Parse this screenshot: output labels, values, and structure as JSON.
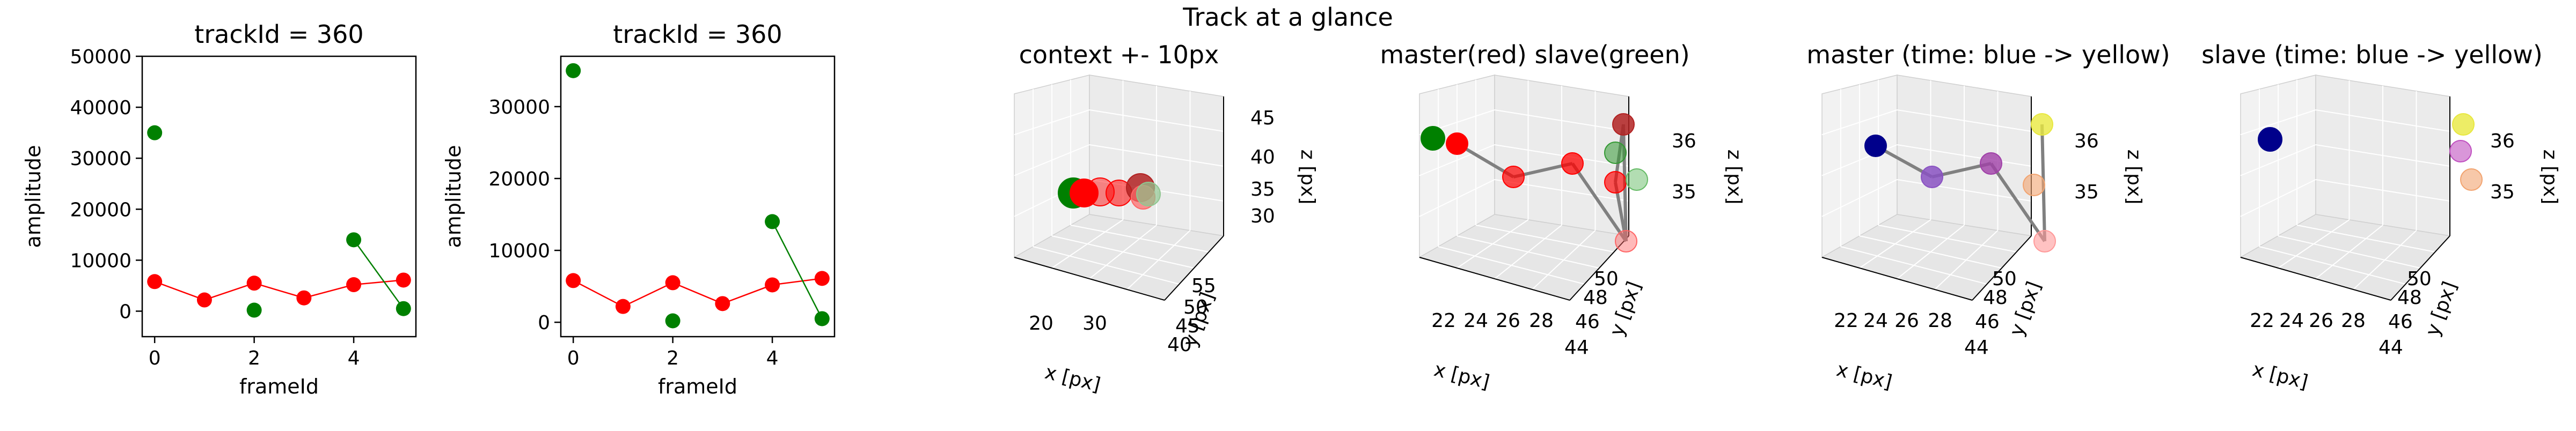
{
  "figure": {
    "suptitle": "Track at a glance"
  },
  "colors": {
    "master": "#ff0000",
    "slave": "#008000",
    "connector": "#808080",
    "time_start": "#00008b",
    "time_end": "#ffff66"
  },
  "chart_data": [
    {
      "type": "line",
      "title": "trackId = 360",
      "xlabel": "frameId",
      "ylabel": "amplitude",
      "xlim": [
        -0.25,
        5.25
      ],
      "ylim": [
        -5000,
        50000
      ],
      "xticks": [
        "0",
        "2",
        "4"
      ],
      "yticks": [
        "0",
        "10000",
        "20000",
        "30000",
        "40000",
        "50000"
      ],
      "series": [
        {
          "color": "#ff0000",
          "x": [
            0,
            1,
            2,
            3,
            4,
            5
          ],
          "y": [
            5800,
            2200,
            5500,
            2600,
            5200,
            6100
          ]
        },
        {
          "color": "#008000",
          "style": "points",
          "x": [
            0,
            2
          ],
          "y": [
            35000,
            200
          ]
        },
        {
          "color": "#008000",
          "x": [
            4,
            5
          ],
          "y": [
            14000,
            500
          ]
        }
      ]
    },
    {
      "type": "line",
      "title": "trackId = 360",
      "xlabel": "frameId",
      "ylabel": "amplitude",
      "xlim": [
        -0.25,
        5.25
      ],
      "ylim": [
        -2000,
        37000
      ],
      "xticks": [
        "0",
        "2",
        "4"
      ],
      "yticks": [
        "0",
        "10000",
        "20000",
        "30000"
      ],
      "series": [
        {
          "color": "#ff0000",
          "x": [
            0,
            1,
            2,
            3,
            4,
            5
          ],
          "y": [
            5800,
            2200,
            5500,
            2600,
            5200,
            6100
          ]
        },
        {
          "color": "#008000",
          "style": "points",
          "x": [
            0,
            2
          ],
          "y": [
            35000,
            200
          ]
        },
        {
          "color": "#008000",
          "x": [
            4,
            5
          ],
          "y": [
            14000,
            500
          ]
        }
      ]
    },
    {
      "type": "scatter",
      "projection": "3d",
      "title": "context +- 10px",
      "xlabel": "x [px]",
      "ylabel": "y [px]",
      "zlabel": "z [px]",
      "xticks": [
        "20",
        "30"
      ],
      "yticks": [
        "40",
        "45",
        "50",
        "55"
      ],
      "zticks": [
        "30",
        "35",
        "40",
        "45"
      ],
      "points": [
        {
          "x": 20,
          "y": 47,
          "z": 35,
          "color": "#008000",
          "alpha": 1.0
        },
        {
          "x": 21.5,
          "y": 47,
          "z": 35,
          "color": "#ff0000",
          "alpha": 1.0
        },
        {
          "x": 24,
          "y": 47,
          "z": 35,
          "color": "#ff0000",
          "alpha": 0.45
        },
        {
          "x": 27,
          "y": 47,
          "z": 35,
          "color": "#ff0000",
          "alpha": 0.55
        },
        {
          "x": 29.5,
          "y": 47,
          "z": 36,
          "color": "#b22222",
          "alpha": 0.85
        },
        {
          "x": 30,
          "y": 47,
          "z": 34.5,
          "color": "#ff6666",
          "alpha": 0.7
        },
        {
          "x": 31,
          "y": 47,
          "z": 35,
          "color": "#90c690",
          "alpha": 0.7
        }
      ]
    },
    {
      "type": "scatter",
      "projection": "3d",
      "title": "master(red) slave(green)",
      "xlabel": "x [px]",
      "ylabel": "y [px]",
      "zlabel": "z [px]",
      "xticks": [
        "22",
        "24",
        "26",
        "28"
      ],
      "yticks": [
        "44",
        "46",
        "48",
        "50"
      ],
      "zticks": [
        "35",
        "36"
      ],
      "points": [
        {
          "color": "#008000",
          "alpha": 1.0
        },
        {
          "color": "#ff0000",
          "alpha": 1.0
        },
        {
          "color": "#ff0000",
          "alpha": 0.7
        },
        {
          "color": "#ff0000",
          "alpha": 0.75
        },
        {
          "color": "#b22222",
          "alpha": 0.85
        },
        {
          "color": "#ff0000",
          "alpha": 0.65
        },
        {
          "color": "#ff6666",
          "alpha": 0.45
        },
        {
          "color": "#339933",
          "alpha": 0.55
        },
        {
          "color": "#66bb66",
          "alpha": 0.5
        }
      ]
    },
    {
      "type": "scatter",
      "projection": "3d",
      "title": "master (time: blue -> yellow)",
      "xlabel": "x [px]",
      "ylabel": "y [px]",
      "zlabel": "z [px]",
      "xticks": [
        "22",
        "24",
        "26",
        "28"
      ],
      "yticks": [
        "44",
        "46",
        "48",
        "50"
      ],
      "zticks": [
        "35",
        "36"
      ],
      "points": [
        {
          "color": "#00008b",
          "alpha": 1.0
        },
        {
          "color": "#8a52c2",
          "alpha": 0.85
        },
        {
          "color": "#a040a8",
          "alpha": 0.8
        },
        {
          "color": "#f2a470",
          "alpha": 0.6
        },
        {
          "color": "#ff9999",
          "alpha": 0.6
        },
        {
          "color": "#e8e840",
          "alpha": 0.8
        }
      ]
    },
    {
      "type": "scatter",
      "projection": "3d",
      "title": "slave (time: blue -> yellow)",
      "xlabel": "x [px]",
      "ylabel": "y [px]",
      "zlabel": "z [px]",
      "xticks": [
        "22",
        "24",
        "26",
        "28"
      ],
      "yticks": [
        "44",
        "46",
        "48",
        "50"
      ],
      "zticks": [
        "35",
        "36"
      ],
      "points": [
        {
          "color": "#00008b",
          "alpha": 1.0
        },
        {
          "color": "#c050c0",
          "alpha": 0.6
        },
        {
          "color": "#f2a470",
          "alpha": 0.6
        },
        {
          "color": "#e8e840",
          "alpha": 0.8
        }
      ]
    }
  ]
}
